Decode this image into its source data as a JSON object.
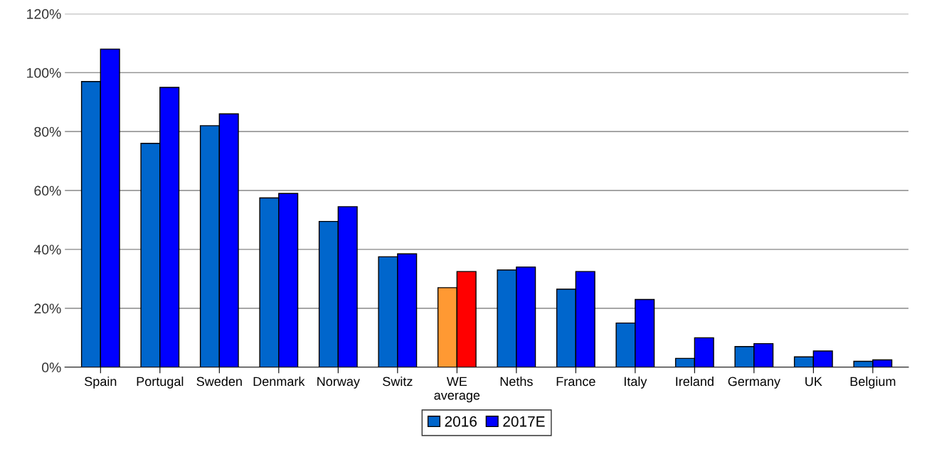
{
  "chart_data": {
    "type": "bar",
    "categories": [
      "Spain",
      "Portugal",
      "Sweden",
      "Denmark",
      "Norway",
      "Switz",
      "WE\naverage",
      "Neths",
      "France",
      "Italy",
      "Ireland",
      "Germany",
      "UK",
      "Belgium"
    ],
    "series": [
      {
        "name": "2016",
        "color": "#0066cc",
        "colors": [
          "#0066cc",
          "#0066cc",
          "#0066cc",
          "#0066cc",
          "#0066cc",
          "#0066cc",
          "#ff9933",
          "#0066cc",
          "#0066cc",
          "#0066cc",
          "#0066cc",
          "#0066cc",
          "#0066cc",
          "#0066cc"
        ],
        "values": [
          97,
          76,
          82,
          57.5,
          49.5,
          37.5,
          27,
          33,
          26.5,
          15,
          3,
          7,
          3.5,
          2
        ]
      },
      {
        "name": "2017E",
        "color": "#0000ff",
        "colors": [
          "#0000ff",
          "#0000ff",
          "#0000ff",
          "#0000ff",
          "#0000ff",
          "#0000ff",
          "#ff0000",
          "#0000ff",
          "#0000ff",
          "#0000ff",
          "#0000ff",
          "#0000ff",
          "#0000ff",
          "#0000ff"
        ],
        "values": [
          108,
          95,
          86,
          59,
          54.5,
          38.5,
          32.5,
          34,
          32.5,
          23,
          10,
          8,
          5.5,
          2.5
        ]
      }
    ],
    "ylim": [
      0,
      120
    ],
    "yticks": [
      {
        "value": 0,
        "label": "0%"
      },
      {
        "value": 20,
        "label": "20%"
      },
      {
        "value": 40,
        "label": "40%"
      },
      {
        "value": 60,
        "label": "60%"
      },
      {
        "value": 80,
        "label": "80%"
      },
      {
        "value": 100,
        "label": "100%"
      },
      {
        "value": 120,
        "label": "120%"
      }
    ],
    "grid": "y",
    "legend": "bottom"
  }
}
